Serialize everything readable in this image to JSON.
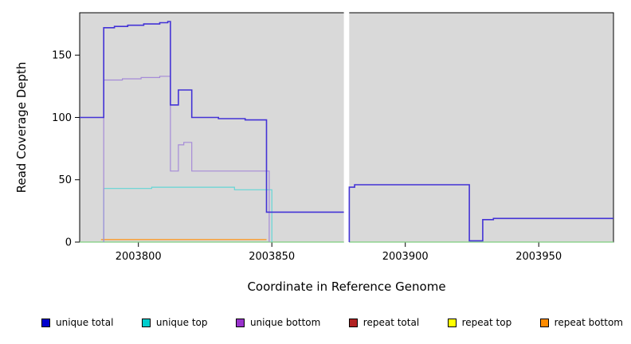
{
  "chart_data": {
    "type": "line",
    "subtype": "step-coverage",
    "xlabel": "Coordinate in Reference Genome",
    "ylabel": "Read Coverage Depth",
    "xlim": [
      2003778,
      2003978
    ],
    "ylim": [
      0,
      184
    ],
    "x_ticks": [
      2003800,
      2003850,
      2003900,
      2003950
    ],
    "y_ticks": [
      0,
      50,
      100,
      150
    ],
    "plot_bg": "#d9d9d9",
    "grid": false,
    "gap": {
      "x1": 2003877,
      "x2": 2003879,
      "color": "#ffffff"
    },
    "series": [
      {
        "name": "zero-baseline",
        "color": "#7fcf7f",
        "width": 1.2,
        "segments": [
          [
            2003778,
            2003877,
            0
          ],
          [
            2003879,
            2003978,
            0
          ]
        ]
      },
      {
        "name": "repeat-total",
        "color": "#b22222",
        "width": 1.2,
        "segments": []
      },
      {
        "name": "repeat-top",
        "color": "#ffff00",
        "width": 1.2,
        "segments": []
      },
      {
        "name": "repeat-bottom",
        "color": "#ff9214",
        "width": 1.2,
        "segments": [
          [
            2003786,
            2003848,
            2
          ]
        ]
      },
      {
        "name": "unique-top",
        "color": "#63d6d6",
        "width": 1.2,
        "segments": [
          [
            2003787,
            2003787,
            0
          ],
          [
            2003787,
            2003805,
            43
          ],
          [
            2003805,
            2003836,
            44
          ],
          [
            2003836,
            2003850,
            42
          ],
          [
            2003850,
            2003850,
            0
          ]
        ]
      },
      {
        "name": "unique-bottom",
        "color": "#a58bd8",
        "width": 1.2,
        "segments": [
          [
            2003787,
            2003787,
            0
          ],
          [
            2003787,
            2003794,
            130
          ],
          [
            2003794,
            2003801,
            131
          ],
          [
            2003801,
            2003808,
            132
          ],
          [
            2003808,
            2003812,
            133
          ],
          [
            2003812,
            2003815,
            57
          ],
          [
            2003815,
            2003817,
            78
          ],
          [
            2003817,
            2003820,
            80
          ],
          [
            2003820,
            2003849,
            57
          ],
          [
            2003849,
            2003849,
            0
          ]
        ]
      },
      {
        "name": "unique-total",
        "color": "#4333d6",
        "width": 1.6,
        "segments": [
          [
            2003778,
            2003787,
            100
          ],
          [
            2003787,
            2003791,
            172
          ],
          [
            2003791,
            2003796,
            173
          ],
          [
            2003796,
            2003802,
            174
          ],
          [
            2003802,
            2003808,
            175
          ],
          [
            2003808,
            2003811,
            176
          ],
          [
            2003811,
            2003812,
            177
          ],
          [
            2003812,
            2003815,
            110
          ],
          [
            2003815,
            2003820,
            122
          ],
          [
            2003820,
            2003830,
            100
          ],
          [
            2003830,
            2003840,
            99
          ],
          [
            2003840,
            2003848,
            98
          ],
          [
            2003848,
            2003877,
            24
          ],
          [
            2003879,
            2003879,
            0
          ],
          [
            2003879,
            2003881,
            44
          ],
          [
            2003881,
            2003924,
            46
          ],
          [
            2003924,
            2003929,
            1
          ],
          [
            2003929,
            2003933,
            18
          ],
          [
            2003933,
            2003978,
            19
          ]
        ]
      }
    ],
    "legend": [
      {
        "label": "unique total",
        "color": "#0000cd"
      },
      {
        "label": "unique top",
        "color": "#00cdcd"
      },
      {
        "label": "unique bottom",
        "color": "#9932cc"
      },
      {
        "label": "repeat total",
        "color": "#b22222"
      },
      {
        "label": "repeat top",
        "color": "#ffff00"
      },
      {
        "label": "repeat bottom",
        "color": "#ff8c00"
      }
    ],
    "legend_position": "bottom"
  }
}
